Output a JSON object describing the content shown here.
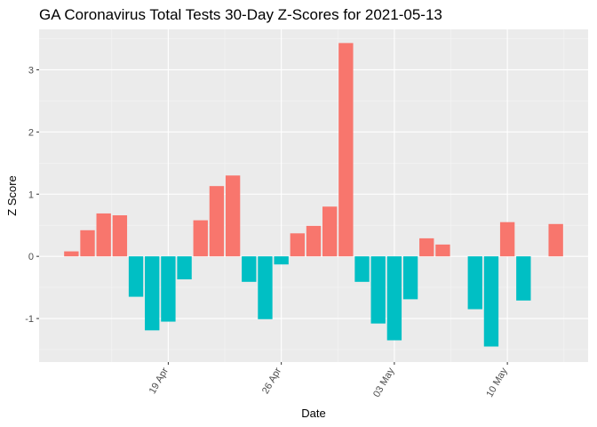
{
  "chart_data": {
    "type": "bar",
    "title": "GA Coronavirus Total Tests 30-Day Z-Scores for 2021-05-13",
    "xlabel": "Date",
    "ylabel": "Z Score",
    "x_ticks": [
      "19 Apr",
      "26 Apr",
      "03 May",
      "10 May"
    ],
    "x_tick_dates": [
      "2021-04-19",
      "2021-04-26",
      "2021-05-03",
      "2021-05-10"
    ],
    "y_ticks": [
      -1,
      0,
      1,
      2,
      3
    ],
    "ylim": [
      -1.7,
      3.65
    ],
    "x_range": [
      "2021-04-11",
      "2021-05-15"
    ],
    "grid": true,
    "legend": "none",
    "colors": {
      "positive": "#F8766D",
      "negative": "#00BFC4",
      "panel": "#EBEBEB",
      "grid_major": "#FFFFFF",
      "grid_minor": "#F5F5F5"
    },
    "dates": [
      "2021-04-13",
      "2021-04-14",
      "2021-04-15",
      "2021-04-16",
      "2021-04-17",
      "2021-04-18",
      "2021-04-19",
      "2021-04-20",
      "2021-04-21",
      "2021-04-22",
      "2021-04-23",
      "2021-04-24",
      "2021-04-25",
      "2021-04-26",
      "2021-04-27",
      "2021-04-28",
      "2021-04-29",
      "2021-04-30",
      "2021-05-01",
      "2021-05-02",
      "2021-05-03",
      "2021-05-04",
      "2021-05-05",
      "2021-05-06",
      "2021-05-07",
      "2021-05-08",
      "2021-05-09",
      "2021-05-10",
      "2021-05-11",
      "2021-05-12",
      "2021-05-13"
    ],
    "values": [
      0.08,
      0.42,
      0.69,
      0.66,
      -0.65,
      -1.19,
      -1.05,
      -0.37,
      0.58,
      1.13,
      1.3,
      -0.41,
      -1.01,
      -0.13,
      0.37,
      0.49,
      0.8,
      3.43,
      -0.41,
      -1.08,
      -1.35,
      -0.69,
      0.29,
      0.19,
      null,
      -0.85,
      -1.45,
      0.55,
      -0.71,
      null,
      0.52
    ]
  }
}
